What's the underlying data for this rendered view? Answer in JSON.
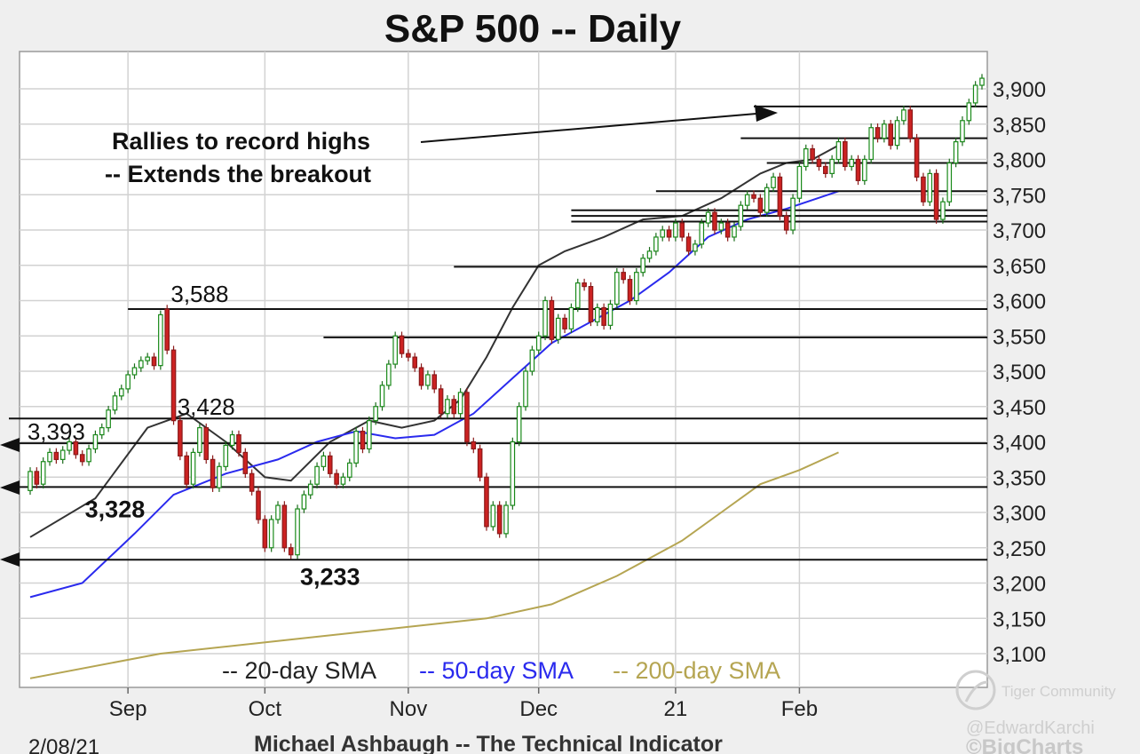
{
  "chart_data": {
    "type": "candlestick",
    "title": "S&P 500 -- Daily",
    "ylim": [
      3060,
      3940
    ],
    "y_ticks": [
      3100,
      3150,
      3200,
      3250,
      3300,
      3350,
      3400,
      3450,
      3500,
      3550,
      3600,
      3650,
      3700,
      3750,
      3800,
      3850,
      3900
    ],
    "y_tick_labels": [
      "3,100",
      "3,150",
      "3,200",
      "3,250",
      "3,300",
      "3,350",
      "3,400",
      "3,450",
      "3,500",
      "3,550",
      "3,600",
      "3,650",
      "3,700",
      "3,750",
      "3,800",
      "3,850",
      "3,900"
    ],
    "x_labels": [
      {
        "label": "Sep",
        "day": 15
      },
      {
        "label": "Oct",
        "day": 36
      },
      {
        "label": "Nov",
        "day": 58
      },
      {
        "label": "Dec",
        "day": 78
      },
      {
        "label": "21",
        "day": 99
      },
      {
        "label": "Feb",
        "day": 118
      }
    ],
    "grid": true,
    "candles": [
      [
        3331,
        3358
      ],
      [
        3358,
        3340
      ],
      [
        3340,
        3372
      ],
      [
        3372,
        3385
      ],
      [
        3385,
        3375
      ],
      [
        3375,
        3388
      ],
      [
        3388,
        3400
      ],
      [
        3400,
        3382
      ],
      [
        3382,
        3372
      ],
      [
        3372,
        3390
      ],
      [
        3390,
        3410
      ],
      [
        3410,
        3420
      ],
      [
        3420,
        3445
      ],
      [
        3445,
        3465
      ],
      [
        3465,
        3475
      ],
      [
        3475,
        3495
      ],
      [
        3495,
        3505
      ],
      [
        3505,
        3515
      ],
      [
        3515,
        3520
      ],
      [
        3520,
        3508
      ],
      [
        3508,
        3580
      ],
      [
        3588,
        3530
      ],
      [
        3530,
        3430
      ],
      [
        3430,
        3380
      ],
      [
        3380,
        3340
      ],
      [
        3340,
        3385
      ],
      [
        3385,
        3420
      ],
      [
        3420,
        3375
      ],
      [
        3375,
        3335
      ],
      [
        3335,
        3365
      ],
      [
        3365,
        3395
      ],
      [
        3395,
        3410
      ],
      [
        3410,
        3385
      ],
      [
        3385,
        3355
      ],
      [
        3355,
        3330
      ],
      [
        3330,
        3290
      ],
      [
        3290,
        3250
      ],
      [
        3250,
        3290
      ],
      [
        3290,
        3310
      ],
      [
        3310,
        3250
      ],
      [
        3250,
        3240
      ],
      [
        3240,
        3305
      ],
      [
        3305,
        3325
      ],
      [
        3325,
        3340
      ],
      [
        3340,
        3365
      ],
      [
        3365,
        3380
      ],
      [
        3380,
        3355
      ],
      [
        3355,
        3340
      ],
      [
        3340,
        3350
      ],
      [
        3350,
        3370
      ],
      [
        3370,
        3415
      ],
      [
        3415,
        3390
      ],
      [
        3390,
        3430
      ],
      [
        3430,
        3450
      ],
      [
        3450,
        3480
      ],
      [
        3480,
        3510
      ],
      [
        3510,
        3550
      ],
      [
        3550,
        3525
      ],
      [
        3525,
        3520
      ],
      [
        3520,
        3505
      ],
      [
        3505,
        3480
      ],
      [
        3480,
        3495
      ],
      [
        3495,
        3475
      ],
      [
        3475,
        3440
      ],
      [
        3440,
        3460
      ],
      [
        3460,
        3440
      ],
      [
        3440,
        3470
      ],
      [
        3470,
        3400
      ],
      [
        3400,
        3390
      ],
      [
        3390,
        3350
      ],
      [
        3350,
        3280
      ],
      [
        3280,
        3310
      ],
      [
        3310,
        3270
      ],
      [
        3270,
        3310
      ],
      [
        3310,
        3400
      ],
      [
        3400,
        3450
      ],
      [
        3450,
        3500
      ],
      [
        3500,
        3530
      ],
      [
        3530,
        3550
      ],
      [
        3550,
        3600
      ],
      [
        3600,
        3545
      ],
      [
        3545,
        3575
      ],
      [
        3575,
        3560
      ],
      [
        3560,
        3590
      ],
      [
        3590,
        3625
      ],
      [
        3625,
        3620
      ],
      [
        3620,
        3570
      ],
      [
        3570,
        3590
      ],
      [
        3590,
        3565
      ],
      [
        3565,
        3595
      ],
      [
        3595,
        3640
      ],
      [
        3640,
        3630
      ],
      [
        3630,
        3600
      ],
      [
        3600,
        3640
      ],
      [
        3640,
        3660
      ],
      [
        3660,
        3670
      ],
      [
        3670,
        3690
      ],
      [
        3690,
        3700
      ],
      [
        3700,
        3690
      ],
      [
        3690,
        3710
      ],
      [
        3710,
        3690
      ],
      [
        3690,
        3670
      ],
      [
        3670,
        3680
      ],
      [
        3680,
        3710
      ],
      [
        3710,
        3725
      ],
      [
        3725,
        3700
      ],
      [
        3700,
        3710
      ],
      [
        3710,
        3690
      ],
      [
        3690,
        3705
      ],
      [
        3705,
        3735
      ],
      [
        3735,
        3750
      ],
      [
        3750,
        3745
      ],
      [
        3745,
        3725
      ],
      [
        3725,
        3760
      ],
      [
        3760,
        3775
      ],
      [
        3775,
        3720
      ],
      [
        3720,
        3700
      ],
      [
        3700,
        3745
      ],
      [
        3745,
        3790
      ],
      [
        3790,
        3815
      ],
      [
        3815,
        3800
      ],
      [
        3800,
        3790
      ],
      [
        3790,
        3780
      ],
      [
        3780,
        3800
      ],
      [
        3800,
        3825
      ],
      [
        3825,
        3790
      ],
      [
        3790,
        3800
      ],
      [
        3800,
        3770
      ],
      [
        3770,
        3800
      ],
      [
        3800,
        3845
      ],
      [
        3845,
        3830
      ],
      [
        3830,
        3850
      ],
      [
        3850,
        3820
      ],
      [
        3820,
        3855
      ],
      [
        3855,
        3870
      ],
      [
        3870,
        3830
      ],
      [
        3830,
        3775
      ],
      [
        3775,
        3740
      ],
      [
        3740,
        3780
      ],
      [
        3780,
        3715
      ],
      [
        3715,
        3740
      ],
      [
        3740,
        3795
      ],
      [
        3795,
        3825
      ],
      [
        3825,
        3855
      ],
      [
        3855,
        3880
      ],
      [
        3880,
        3905
      ],
      [
        3905,
        3915
      ]
    ],
    "series": [
      {
        "name": "20-day SMA",
        "color": "#333333",
        "points": [
          [
            0,
            3265
          ],
          [
            10,
            3320
          ],
          [
            18,
            3420
          ],
          [
            24,
            3440
          ],
          [
            30,
            3400
          ],
          [
            36,
            3350
          ],
          [
            40,
            3345
          ],
          [
            46,
            3400
          ],
          [
            52,
            3430
          ],
          [
            57,
            3420
          ],
          [
            62,
            3430
          ],
          [
            66,
            3460
          ],
          [
            70,
            3520
          ],
          [
            74,
            3590
          ],
          [
            78,
            3650
          ],
          [
            82,
            3670
          ],
          [
            88,
            3690
          ],
          [
            94,
            3715
          ],
          [
            100,
            3720
          ],
          [
            106,
            3745
          ],
          [
            112,
            3780
          ],
          [
            116,
            3795
          ],
          [
            120,
            3800
          ],
          [
            124,
            3820
          ]
        ]
      },
      {
        "name": "50-day SMA",
        "color": "#2a2aee",
        "points": [
          [
            0,
            3180
          ],
          [
            8,
            3200
          ],
          [
            16,
            3270
          ],
          [
            22,
            3325
          ],
          [
            30,
            3355
          ],
          [
            38,
            3375
          ],
          [
            44,
            3400
          ],
          [
            50,
            3415
          ],
          [
            56,
            3405
          ],
          [
            62,
            3410
          ],
          [
            68,
            3440
          ],
          [
            74,
            3490
          ],
          [
            80,
            3540
          ],
          [
            86,
            3570
          ],
          [
            92,
            3600
          ],
          [
            98,
            3640
          ],
          [
            104,
            3690
          ],
          [
            110,
            3715
          ],
          [
            116,
            3730
          ],
          [
            124,
            3755
          ]
        ]
      },
      {
        "name": "200-day SMA",
        "color": "#b5a552",
        "points": [
          [
            0,
            3065
          ],
          [
            20,
            3100
          ],
          [
            40,
            3120
          ],
          [
            60,
            3140
          ],
          [
            70,
            3150
          ],
          [
            80,
            3170
          ],
          [
            90,
            3210
          ],
          [
            100,
            3260
          ],
          [
            106,
            3300
          ],
          [
            112,
            3340
          ],
          [
            118,
            3360
          ],
          [
            124,
            3385
          ]
        ]
      }
    ],
    "levels": [
      {
        "value": 3588,
        "from": 15
      },
      {
        "value": 3548,
        "from": 45
      },
      {
        "value": 3648,
        "from": 65
      },
      {
        "value": 3712,
        "from": 83
      },
      {
        "value": 3720,
        "from": 83
      },
      {
        "value": 3728,
        "from": 83
      },
      {
        "value": 3755,
        "from": 96
      },
      {
        "value": 3795,
        "from": 113
      },
      {
        "value": 3830,
        "from": 109
      },
      {
        "value": 3875,
        "from": 111
      },
      {
        "value": 3433,
        "from": 0
      },
      {
        "value": 3398,
        "from": 0
      },
      {
        "value": 3336,
        "from": 0
      },
      {
        "value": 3233,
        "from": 0
      }
    ],
    "level_labels": [
      {
        "text": "3,588",
        "value": 3588,
        "day": 26,
        "bold": false
      },
      {
        "text": "3,428",
        "value": 3428,
        "day": 27,
        "bold": false
      },
      {
        "text": "3,393",
        "value": 3393,
        "day": 4,
        "bold": false
      },
      {
        "text": "3,328",
        "value": 3328,
        "day": 13,
        "bold": true
      },
      {
        "text": "3,233",
        "value": 3233,
        "day": 46,
        "bold": true
      }
    ],
    "annotation": {
      "lines": [
        "Rallies to record highs",
        "-- Extends the breakout"
      ]
    },
    "legend": [
      {
        "text": "-- 20-day SMA",
        "color": "#222222"
      },
      {
        "text": "-- 50-day SMA",
        "color": "#2a2aee"
      },
      {
        "text": "-- 200-day SMA",
        "color": "#b5a552"
      }
    ]
  },
  "footer": {
    "date": "2/08/21",
    "author": "Michael Ashbaugh -- The Technical Indicator",
    "watermark_community": "Tiger Community",
    "watermark_handle": "@EdwardKarchi",
    "watermark_source": "©BigCharts"
  }
}
